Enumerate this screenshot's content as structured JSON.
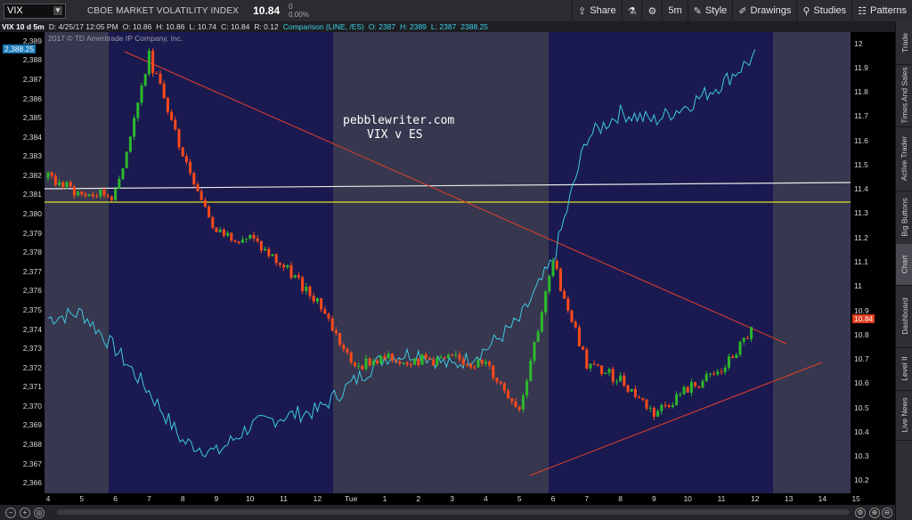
{
  "header": {
    "symbol": "VIX",
    "description": "CBOE MARKET VOLATILITY INDEX",
    "last_price": "10.84",
    "change": "0",
    "change_pct": "0.00%",
    "buttons": {
      "share": "Share",
      "timeframe": "5m",
      "style": "Style",
      "drawings": "Drawings",
      "studies": "Studies",
      "patterns": "Patterns"
    }
  },
  "infobar": {
    "label": "VIX 10 d 5m",
    "datetime": "D: 4/25/17 12:05 PM",
    "open": "O: 10.86",
    "high": "H: 10.86",
    "low": "L: 10.74",
    "close": "C: 10.84",
    "range": "R: 0.12",
    "comparison": "Comparison (LINE, /ES)",
    "cmp_open": "O: 2387",
    "cmp_high": "H: 2389",
    "cmp_low": "L: 2387",
    "cmp_close": "2388.25"
  },
  "copyright": "2017 © TD Ameritrade IP Company, Inc.",
  "annotation": {
    "line1": "pebblewriter.com",
    "line2": "VIX v ES"
  },
  "left_price_tag": "2,388.25",
  "right_price_tag": "10.84",
  "colors": {
    "chart_bg": "#1a1a50",
    "shade": "#37374f",
    "es_line": "#3ec8e0",
    "up_candle": "#2db82d",
    "down_candle": "#ff4a1a",
    "trendline": "#e0402a",
    "white_line": "#e8e8e8",
    "yellow_line": "#e0e020",
    "price_tag": "#e03a1a"
  },
  "sidebar_tabs": [
    "Trade",
    "Times And Sales",
    "Active Trader",
    "Big Buttons",
    "Chart",
    "Dashboard",
    "Level II",
    "Live News"
  ],
  "active_tab": "Chart",
  "chart_data": {
    "type": "line",
    "left_axis": {
      "label": "/ES",
      "ticks": [
        "2,389",
        "2,388",
        "2,387",
        "2,386",
        "2,385",
        "2,384",
        "2,383",
        "2,382",
        "2,381",
        "2,380",
        "2,379",
        "2,378",
        "2,377",
        "2,376",
        "2,375",
        "2,374",
        "2,373",
        "2,372",
        "2,371",
        "2,370",
        "2,369",
        "2,368",
        "2,367",
        "2,366"
      ]
    },
    "right_axis": {
      "label": "VIX",
      "ticks": [
        "12",
        "11.9",
        "11.8",
        "11.7",
        "11.6",
        "11.5",
        "11.4",
        "11.3",
        "11.2",
        "11.1",
        "11",
        "10.9",
        "10.8",
        "10.7",
        "10.6",
        "10.5",
        "10.4",
        "10.3",
        "10.2"
      ]
    },
    "x_ticks": [
      "4",
      "5",
      "6",
      "7",
      "8",
      "9",
      "10",
      "11",
      "12",
      "Tue",
      "1",
      "2",
      "3",
      "4",
      "5",
      "6",
      "7",
      "8",
      "9",
      "10",
      "11",
      "12",
      "13",
      "14",
      "15"
    ],
    "series": [
      {
        "name": "/ES",
        "type": "line",
        "x": [
          "4",
          "5",
          "6",
          "7",
          "8",
          "9",
          "10",
          "11",
          "12",
          "Tue",
          "1",
          "2",
          "3",
          "4",
          "5",
          "6",
          "7",
          "8",
          "9",
          "10",
          "11",
          "12"
        ],
        "values": [
          2374.6,
          2374.9,
          2373.0,
          2370.8,
          2368.2,
          2367.6,
          2369.0,
          2369.5,
          2369.8,
          2371.2,
          2372.6,
          2372.8,
          2372.1,
          2373.0,
          2374.5,
          2377.6,
          2384.0,
          2385.3,
          2384.9,
          2385.7,
          2386.8,
          2388.25
        ]
      },
      {
        "name": "VIX",
        "type": "candlestick",
        "x": [
          "4",
          "5",
          "6",
          "7",
          "8",
          "9",
          "10",
          "11",
          "12",
          "Tue",
          "1",
          "2",
          "3",
          "4",
          "5",
          "6",
          "7",
          "8",
          "9",
          "10",
          "11",
          "12"
        ],
        "values": [
          11.45,
          11.38,
          11.38,
          11.95,
          11.55,
          11.22,
          11.2,
          11.08,
          10.95,
          10.68,
          10.7,
          10.7,
          10.7,
          10.68,
          10.5,
          11.1,
          10.68,
          10.62,
          10.48,
          10.58,
          10.65,
          10.84
        ]
      }
    ],
    "ylim_left": [
      2365.5,
      2389.5
    ],
    "ylim_right": [
      10.15,
      12.05
    ]
  }
}
